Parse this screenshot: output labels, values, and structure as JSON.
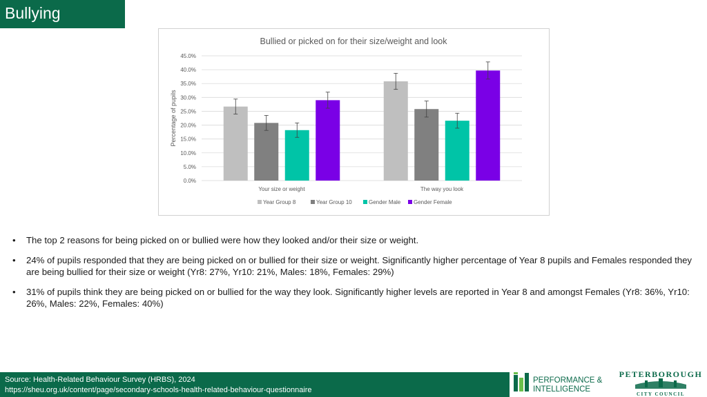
{
  "header": {
    "title": "Bullying"
  },
  "chart_data": {
    "type": "bar",
    "title": "Bullied or picked on for their size/weight and look",
    "ylabel": "Percentage of pupils",
    "xlabel": "",
    "ylim": [
      0,
      45
    ],
    "yticks": [
      "0.0%",
      "5.0%",
      "10.0%",
      "15.0%",
      "20.0%",
      "25.0%",
      "30.0%",
      "35.0%",
      "40.0%",
      "45.0%"
    ],
    "categories": [
      "Your size or weight",
      "The way you look"
    ],
    "series": [
      {
        "name": "Year Group 8",
        "color": "#bfbfbf",
        "values": [
          26.7,
          35.8
        ],
        "error": [
          2.7,
          2.9
        ]
      },
      {
        "name": "Year Group 10",
        "color": "#808080",
        "values": [
          20.8,
          25.8
        ],
        "error": [
          2.7,
          2.9
        ]
      },
      {
        "name": "Gender Male",
        "color": "#00c4a7",
        "values": [
          18.2,
          21.6
        ],
        "error": [
          2.6,
          2.7
        ]
      },
      {
        "name": "Gender Female",
        "color": "#7a00e6",
        "values": [
          29.0,
          39.7
        ],
        "error": [
          2.9,
          3.1
        ]
      }
    ],
    "grid": true,
    "legend_position": "bottom"
  },
  "bullets": [
    "The top 2 reasons for being picked on or bullied were how they looked and/or their size or weight.",
    "24% of pupils responded that they are being picked on or bullied for their size or weight. Significantly higher percentage of Year 8 pupils and Females responded they are being bullied for their size or weight (Yr8: 27%, Yr10: 21%,  Males: 18%, Females: 29%)",
    "31% of pupils think they are being picked on or bullied for the way they look. Significantly higher levels are reported in Year 8 and amongst Females (Yr8: 36%, Yr10: 26%,  Males: 22%, Females: 40%)"
  ],
  "bullet_symbol": "•",
  "footer": {
    "line1": "Source: Health-Related Behaviour Survey (HRBS), 2024",
    "line2": "https://sheu.org.uk/content/page/secondary-schools-health-related-behaviour-questionnaire"
  },
  "logos": {
    "pi_line1": "PERFORMANCE &",
    "pi_line2": "INTELLIGENCE",
    "pcc_line1": "PETERBOROUGH",
    "pcc_line2": "CITY COUNCIL"
  }
}
